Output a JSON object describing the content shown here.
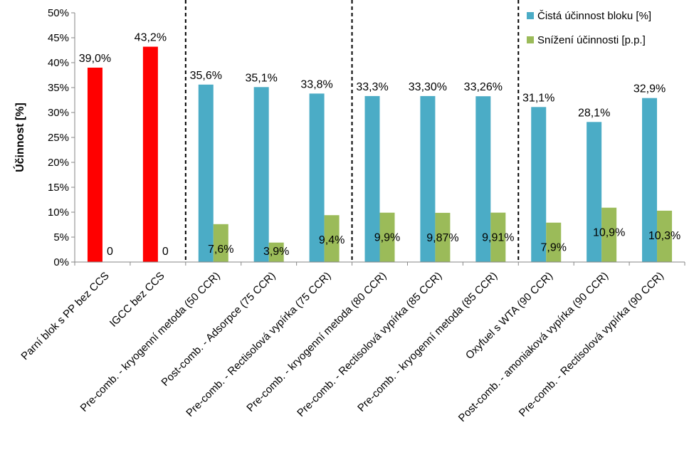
{
  "chart_data": {
    "type": "bar",
    "title": "",
    "xlabel": "",
    "ylabel": "Účinnost [%]",
    "ylim": [
      0,
      50
    ],
    "y_ticks": [
      0,
      5,
      10,
      15,
      20,
      25,
      30,
      35,
      40,
      45,
      50
    ],
    "y_tick_labels": [
      "0%",
      "5%",
      "10%",
      "15%",
      "20%",
      "25%",
      "30%",
      "35%",
      "40%",
      "45%",
      "50%"
    ],
    "categories": [
      "Parní blok s PP bez CCS",
      "IGCC bez CCS",
      "Pre-comb. - kryogenní metoda (50 CCR)",
      "Post-comb. - Adsorpce (75 CCR)",
      "Pre-comb. - Rectisolová vypírka (75 CCR)",
      "Pre-comb. - kryogenní metoda (80 CCR)",
      "Pre-comb. - Rectisolová vypírka (85 CCR)",
      "Pre-comb. - kryogenní metoda (85 CCR)",
      "Oxyfuel s  WTA (90 CCR)",
      "Post-comb. - amoniaková vypírka (90 CCR)",
      "Pre-comb. - Rectisolová vypírka (90 CCR)"
    ],
    "series": [
      {
        "name": "Čistá účinnost bloku [%]",
        "color": "#4BACC6",
        "values": [
          39.0,
          43.2,
          35.6,
          35.1,
          33.8,
          33.3,
          33.3,
          33.26,
          31.1,
          28.1,
          32.9
        ],
        "labels": [
          "39,0%",
          "43,2%",
          "35,6%",
          "35,1%",
          "33,8%",
          "33,3%",
          "33,30%",
          "33,26%",
          "31,1%",
          "28,1%",
          "32,9%"
        ]
      },
      {
        "name": "Snížení účinnosti [p.p.]",
        "color": "#9BBB59",
        "values": [
          0,
          0,
          7.6,
          3.9,
          9.4,
          9.9,
          9.87,
          9.91,
          7.9,
          10.9,
          10.3
        ],
        "labels": [
          "0",
          "0",
          "7,6%",
          "3,9%",
          "9,4%",
          "9,9%",
          "9,87%",
          "9,91%",
          "7,9%",
          "10,9%",
          "10,3%"
        ]
      }
    ],
    "highlight": {
      "color": "#FF0000",
      "categories": [
        0,
        1
      ],
      "series": 0
    },
    "group_separators_after": [
      1,
      4,
      7
    ],
    "legend": "top-right",
    "grid": false
  }
}
